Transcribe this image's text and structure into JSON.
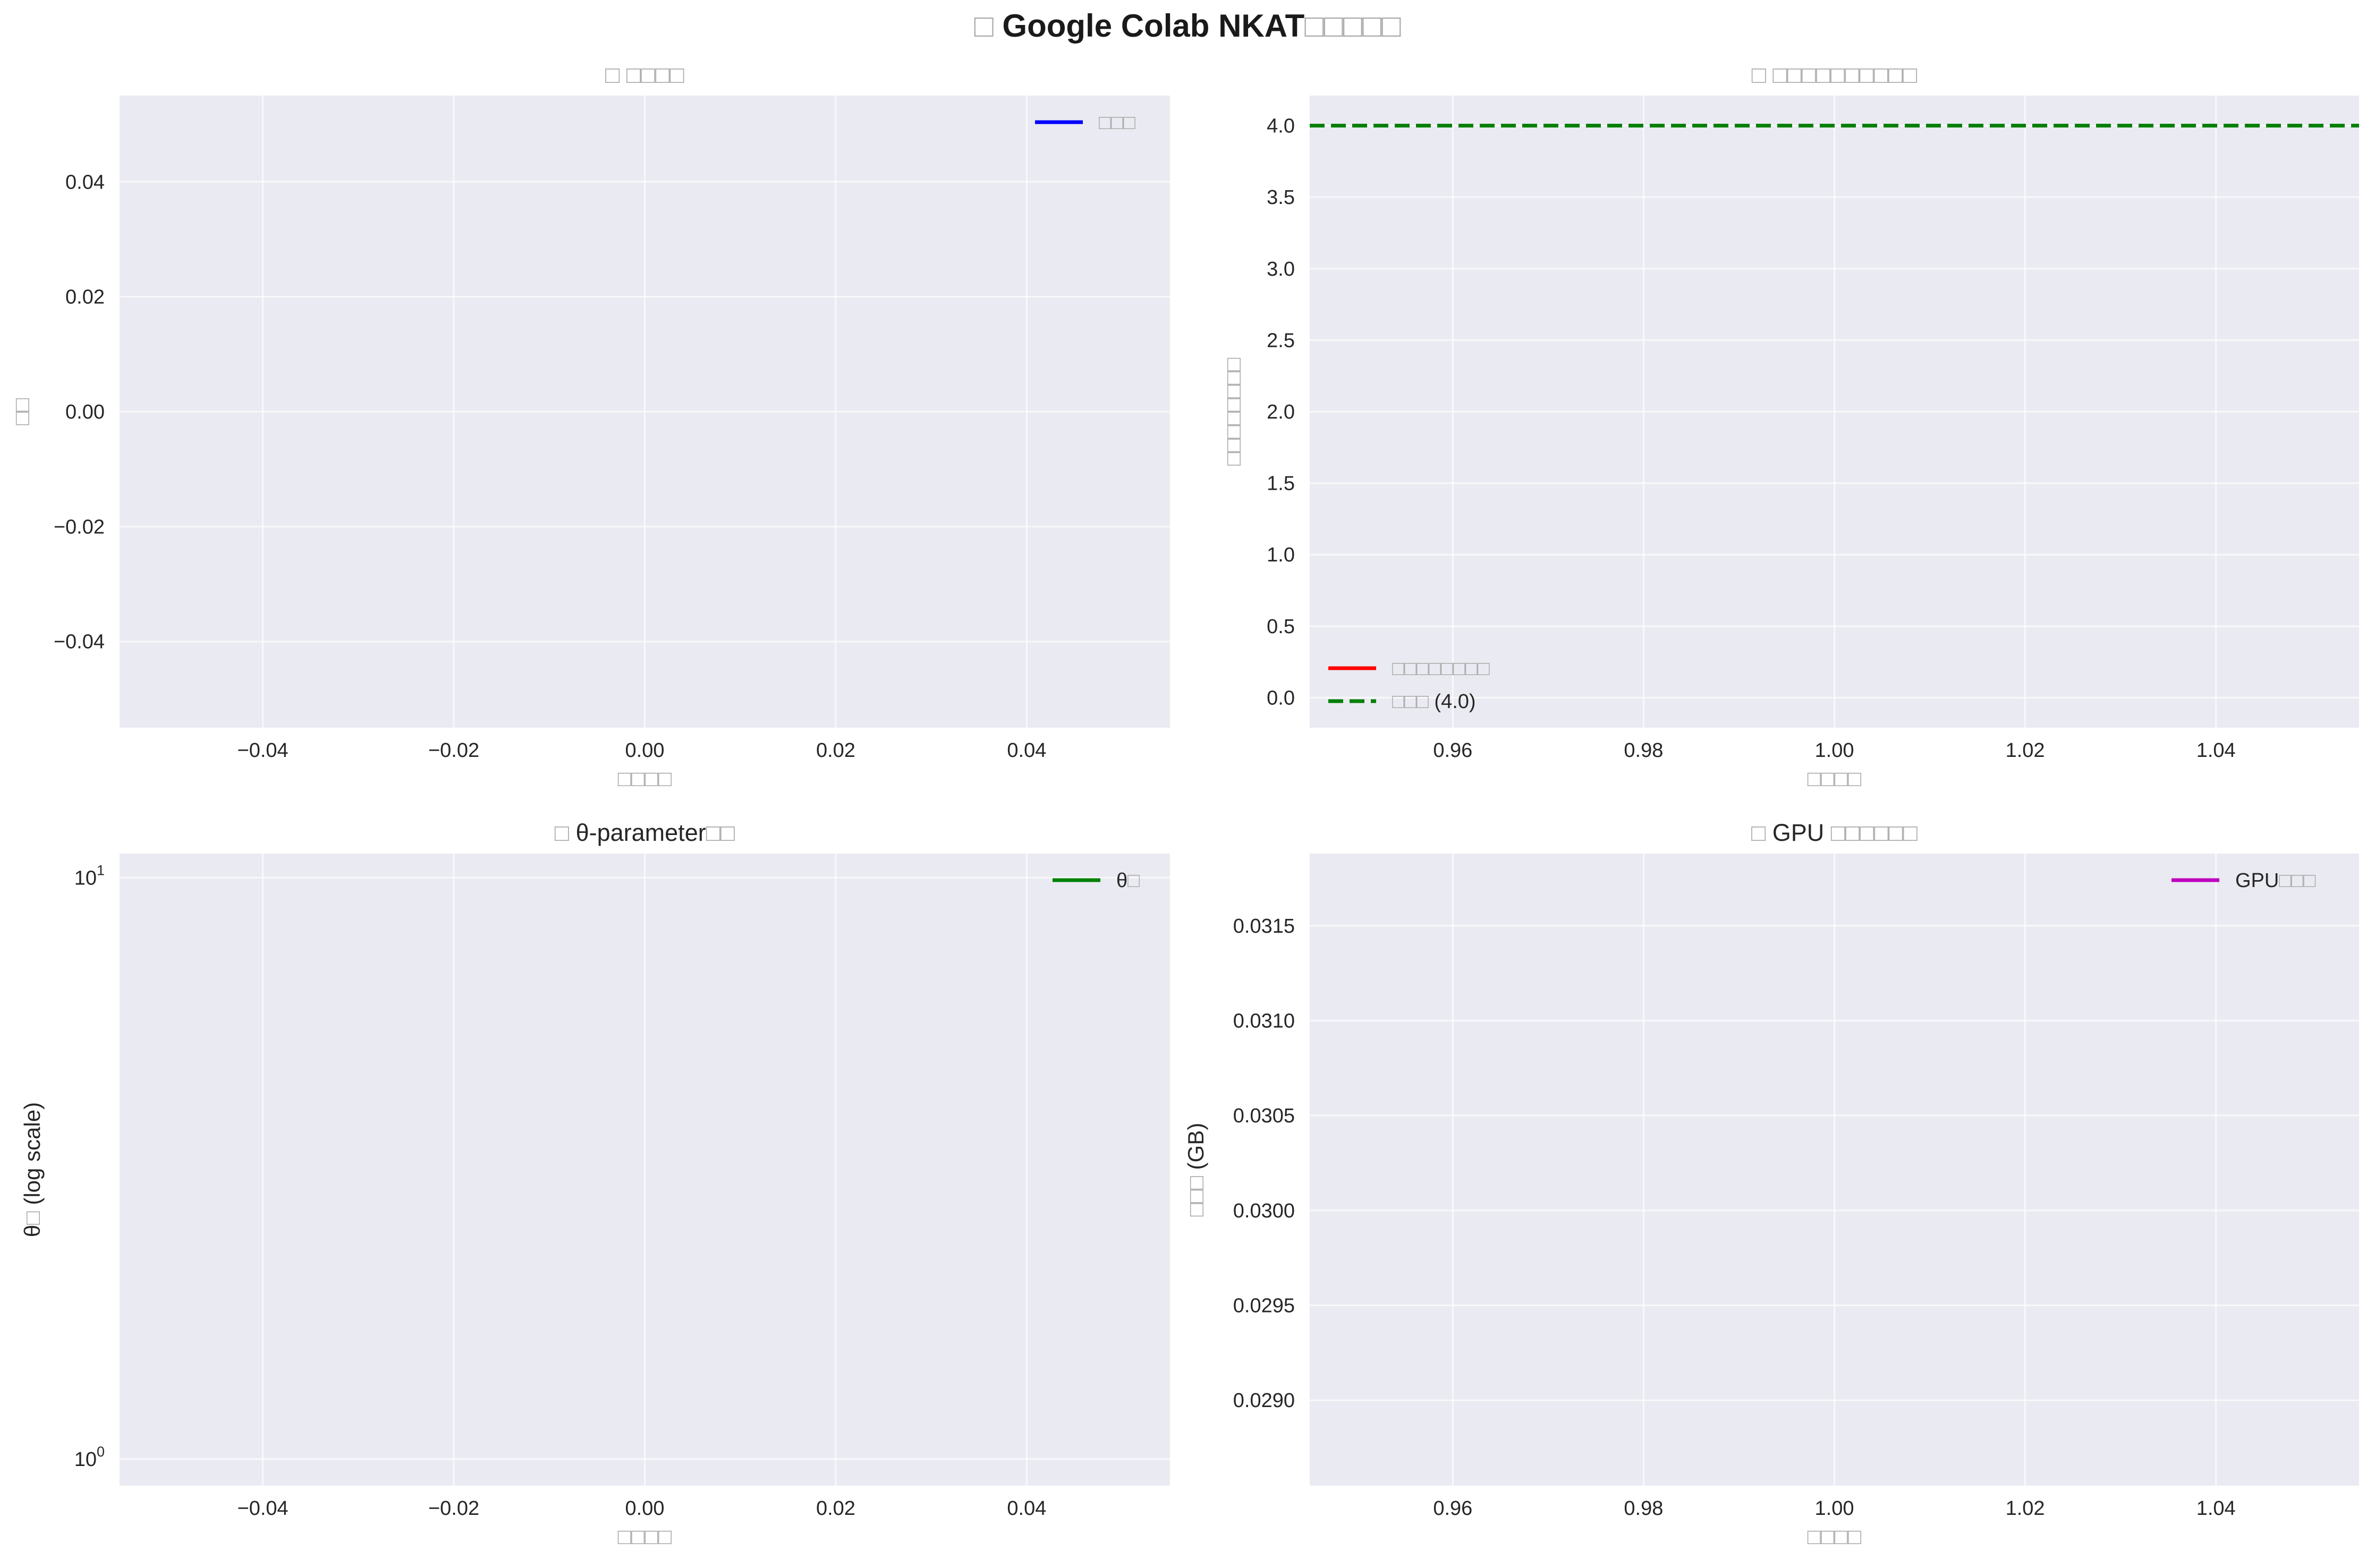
{
  "figure": {
    "title": "□ Google Colab NKAT□□□□□"
  },
  "chart_data": [
    {
      "id": "ax1",
      "type": "line",
      "title": "□ □□□□",
      "xlabel": "□□□□",
      "ylabel": "□□",
      "xlim": [
        -0.055,
        0.055
      ],
      "ylim": [
        -0.055,
        0.055
      ],
      "xticks": [
        -0.04,
        -0.02,
        0.0,
        0.02,
        0.04
      ],
      "yticks": [
        -0.04,
        -0.02,
        0.0,
        0.02,
        0.04
      ],
      "xtick_labels": [
        "−0.04",
        "−0.02",
        "0.00",
        "0.02",
        "0.04"
      ],
      "ytick_labels": [
        "−0.04",
        "−0.02",
        "0.00",
        "0.02",
        "0.04"
      ],
      "yscale": "linear",
      "grid": true,
      "legend_loc": "upper right",
      "series": [
        {
          "name": "□□□",
          "color": "#0000ff",
          "style": "solid",
          "x": [],
          "y": []
        }
      ]
    },
    {
      "id": "ax2",
      "type": "line",
      "title": "□ □□□□□□□□□□",
      "xlabel": "□□□□",
      "ylabel": "□□□□□□□□",
      "xlim": [
        0.945,
        1.055
      ],
      "ylim": [
        -0.21,
        4.21
      ],
      "xticks": [
        0.96,
        0.98,
        1.0,
        1.02,
        1.04
      ],
      "yticks": [
        0.0,
        0.5,
        1.0,
        1.5,
        2.0,
        2.5,
        3.0,
        3.5,
        4.0
      ],
      "xtick_labels": [
        "0.96",
        "0.98",
        "1.00",
        "1.02",
        "1.04"
      ],
      "ytick_labels": [
        "0.0",
        "0.5",
        "1.0",
        "1.5",
        "2.0",
        "2.5",
        "3.0",
        "3.5",
        "4.0"
      ],
      "yscale": "linear",
      "grid": true,
      "legend_loc": "lower left",
      "series": [
        {
          "name": "□□□□□□□□",
          "color": "#ff0000",
          "style": "solid",
          "x": [],
          "y": []
        },
        {
          "name": "□□□ (4.0)",
          "color": "#008000",
          "style": "dashed",
          "hline": 4.0
        }
      ]
    },
    {
      "id": "ax3",
      "type": "line",
      "title": "□ θ-parameter□□",
      "xlabel": "□□□□",
      "ylabel": "θ□ (log scale)",
      "xlim": [
        -0.055,
        0.055
      ],
      "ylim": [
        0.9,
        11.0
      ],
      "xticks": [
        -0.04,
        -0.02,
        0.0,
        0.02,
        0.04
      ],
      "yticks": [
        1,
        10
      ],
      "xtick_labels": [
        "−0.04",
        "−0.02",
        "0.00",
        "0.02",
        "0.04"
      ],
      "ytick_labels": [
        "10^0",
        "10^1"
      ],
      "yscale": "log",
      "grid": true,
      "legend_loc": "upper right",
      "series": [
        {
          "name": "θ□",
          "color": "#008000",
          "style": "solid",
          "x": [],
          "y": []
        }
      ]
    },
    {
      "id": "ax4",
      "type": "line",
      "title": "□ GPU □□□□□□",
      "xlabel": "□□□□",
      "ylabel": "□□□ (GB)",
      "xlim": [
        0.945,
        1.055
      ],
      "ylim": [
        0.02855,
        0.03188
      ],
      "xticks": [
        0.96,
        0.98,
        1.0,
        1.02,
        1.04
      ],
      "yticks": [
        0.029,
        0.0295,
        0.03,
        0.0305,
        0.031,
        0.0315
      ],
      "xtick_labels": [
        "0.96",
        "0.98",
        "1.00",
        "1.02",
        "1.04"
      ],
      "ytick_labels": [
        "0.0290",
        "0.0295",
        "0.0300",
        "0.0305",
        "0.0310",
        "0.0315"
      ],
      "yscale": "linear",
      "grid": true,
      "legend_loc": "upper right",
      "series": [
        {
          "name": "GPU□□□",
          "color": "#bf00bf",
          "style": "solid",
          "x": [],
          "y": []
        }
      ]
    }
  ]
}
